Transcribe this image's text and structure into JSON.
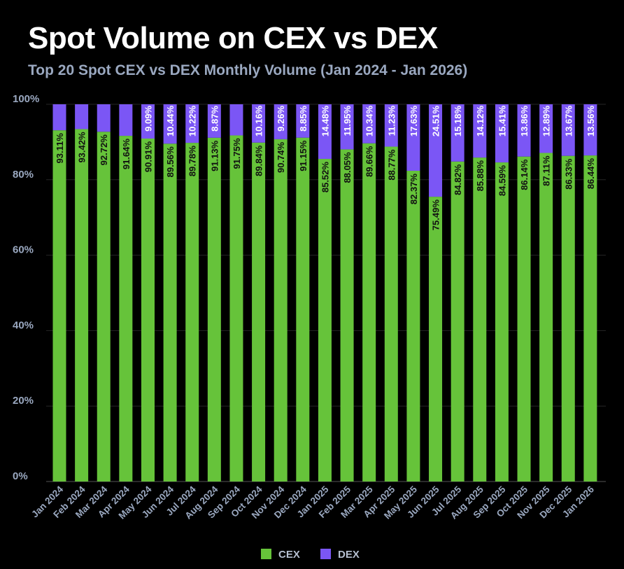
{
  "chart_data": {
    "type": "bar",
    "stacked": true,
    "title": "Spot Volume on CEX vs DEX",
    "subtitle": "Top 20 Spot CEX vs DEX Monthly Volume (Jan 2024 - Jan 2026)",
    "xlabel": "",
    "ylabel": "",
    "ylim": [
      0,
      100
    ],
    "y_ticks": [
      "0%",
      "20%",
      "40%",
      "60%",
      "80%",
      "100%"
    ],
    "grid": true,
    "legend_position": "bottom",
    "categories": [
      "Jan 2024",
      "Feb 2024",
      "Mar 2024",
      "Apr 2024",
      "May 2024",
      "Jun 2024",
      "Jul 2024",
      "Aug 2024",
      "Sep 2024",
      "Oct 2024",
      "Nov 2024",
      "Dec 2024",
      "Jan 2025",
      "Feb 2025",
      "Mar 2025",
      "Apr 2025",
      "May 2025",
      "Jun 2025",
      "Jul 2025",
      "Aug 2025",
      "Sep 2025",
      "Oct 2025",
      "Nov 2025",
      "Dec 2025",
      "Jan 2026"
    ],
    "series": [
      {
        "name": "CEX",
        "color": "#66c33a",
        "values": [
          93.11,
          93.42,
          92.72,
          91.64,
          90.91,
          89.56,
          89.78,
          91.13,
          91.75,
          89.84,
          90.74,
          91.15,
          85.52,
          88.05,
          89.66,
          88.77,
          82.37,
          75.49,
          84.82,
          85.88,
          84.59,
          86.14,
          87.11,
          86.33,
          86.44
        ],
        "labels": [
          "93.11%",
          "93.42%",
          "92.72%",
          "91.64%",
          "90.91%",
          "89.56%",
          "89.78%",
          "91.13%",
          "91.75%",
          "89.84%",
          "90.74%",
          "91.15%",
          "85.52%",
          "88.05%",
          "89.66%",
          "88.77%",
          "82.37%",
          "75.49%",
          "84.82%",
          "85.88%",
          "84.59%",
          "86.14%",
          "87.11%",
          "86.33%",
          "86.44%"
        ]
      },
      {
        "name": "DEX",
        "color": "#7b56f5",
        "values": [
          6.89,
          6.58,
          7.28,
          8.36,
          9.09,
          10.44,
          10.22,
          8.87,
          8.25,
          10.16,
          9.26,
          8.85,
          14.48,
          11.95,
          10.34,
          11.23,
          17.63,
          24.51,
          15.18,
          14.12,
          15.41,
          13.86,
          12.89,
          13.67,
          13.56
        ],
        "labels": [
          null,
          null,
          null,
          null,
          "9.09%",
          "10.44%",
          "10.22%",
          "8.87%",
          null,
          "10.16%",
          "9.26%",
          "8.85%",
          "14.48%",
          "11.95%",
          "10.34%",
          "11.23%",
          "17.63%",
          "24.51%",
          "15.18%",
          "14.12%",
          "15.41%",
          "13.86%",
          "12.89%",
          "13.67%",
          "13.56%"
        ]
      }
    ]
  }
}
